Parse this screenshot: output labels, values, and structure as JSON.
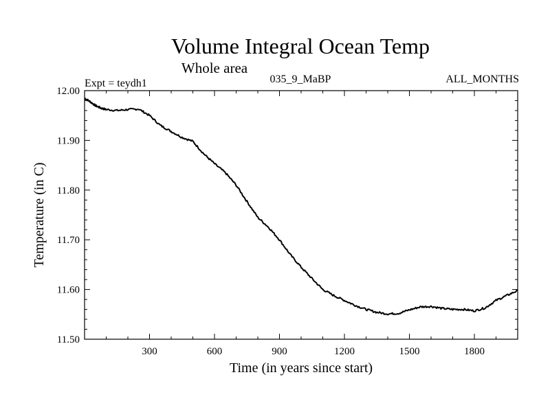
{
  "chart_data": {
    "type": "line",
    "title": "Volume Integral Ocean Temp",
    "subtitle": "Whole area",
    "annotations": {
      "left": "Expt = teydh1",
      "center": "035_9_MaBP",
      "right": "ALL_MONTHS"
    },
    "xlabel": "Time (in years since start)",
    "ylabel": "Temperature (in C)",
    "xlim": [
      0,
      2000
    ],
    "ylim": [
      11.5,
      12.0
    ],
    "xticks": [
      300,
      600,
      900,
      1200,
      1500,
      1800
    ],
    "yticks": [
      11.5,
      11.6,
      11.7,
      11.8,
      11.9,
      12.0
    ],
    "ytick_labels": [
      "11.50",
      "11.60",
      "11.70",
      "11.80",
      "11.90",
      "12.00"
    ],
    "series": [
      {
        "name": "Volume Integral Ocean Temp",
        "x": [
          0,
          25,
          50,
          75,
          100,
          150,
          200,
          250,
          300,
          350,
          400,
          450,
          500,
          550,
          600,
          650,
          700,
          750,
          800,
          850,
          900,
          950,
          1000,
          1050,
          1100,
          1150,
          1200,
          1250,
          1300,
          1350,
          1400,
          1450,
          1500,
          1550,
          1600,
          1650,
          1700,
          1750,
          1800,
          1850,
          1900,
          1950,
          2000
        ],
        "values": [
          11.985,
          11.978,
          11.97,
          11.965,
          11.962,
          11.96,
          11.962,
          11.963,
          11.95,
          11.93,
          11.918,
          11.906,
          11.898,
          11.873,
          11.853,
          11.835,
          11.81,
          11.777,
          11.745,
          11.725,
          11.7,
          11.67,
          11.645,
          11.622,
          11.6,
          11.588,
          11.578,
          11.568,
          11.56,
          11.554,
          11.551,
          11.552,
          11.559,
          11.565,
          11.566,
          11.562,
          11.56,
          11.56,
          11.557,
          11.563,
          11.578,
          11.588,
          11.598
        ]
      }
    ]
  }
}
